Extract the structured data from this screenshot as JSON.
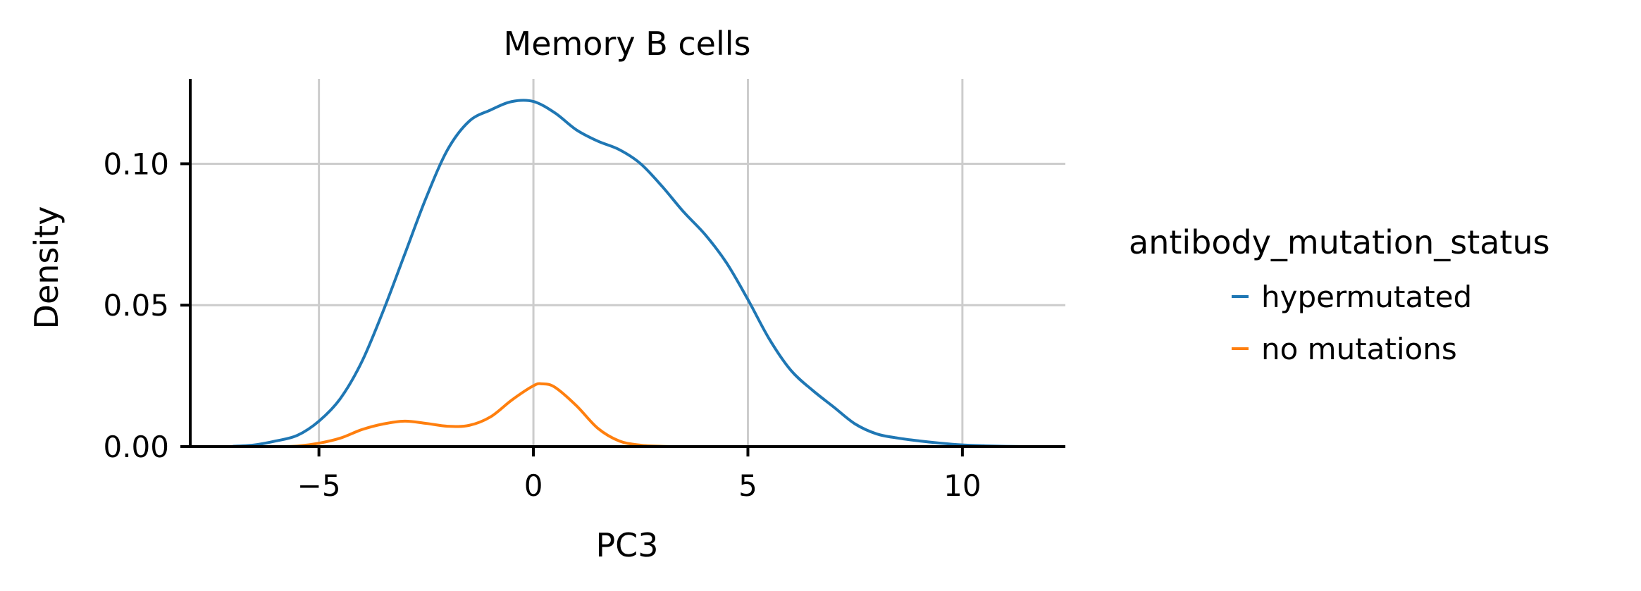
{
  "chart_data": {
    "type": "line",
    "title": "Memory B cells",
    "xlabel": "PC3",
    "ylabel": "Density",
    "xlim": [
      -8.0,
      12.4
    ],
    "ylim": [
      0,
      0.13
    ],
    "xticks": [
      -5,
      0,
      5,
      10
    ],
    "xtick_labels": [
      "−5",
      "0",
      "5",
      "10"
    ],
    "yticks": [
      0.0,
      0.05,
      0.1
    ],
    "ytick_labels": [
      "0.00",
      "0.05",
      "0.10"
    ],
    "grid": true,
    "legend": {
      "title": "antibody_mutation_status",
      "placement": "right"
    },
    "series": [
      {
        "name": "hypermutated",
        "color": "#1f77b4",
        "x": [
          -7,
          -6.5,
          -6,
          -5.5,
          -5,
          -4.5,
          -4,
          -3.5,
          -3,
          -2.5,
          -2,
          -1.5,
          -1,
          -0.5,
          0,
          0.5,
          1,
          1.5,
          2,
          2.5,
          3,
          3.5,
          4,
          4.5,
          5,
          5.5,
          6,
          6.5,
          7,
          7.5,
          8,
          8.5,
          9,
          9.5,
          10,
          10.5,
          11,
          11.5
        ],
        "y": [
          0.0001,
          0.0006,
          0.002,
          0.004,
          0.009,
          0.017,
          0.03,
          0.048,
          0.068,
          0.088,
          0.105,
          0.115,
          0.119,
          0.122,
          0.122,
          0.118,
          0.112,
          0.108,
          0.105,
          0.1,
          0.092,
          0.083,
          0.075,
          0.065,
          0.052,
          0.038,
          0.027,
          0.02,
          0.014,
          0.008,
          0.0045,
          0.003,
          0.002,
          0.0012,
          0.0006,
          0.0003,
          0.0001,
          0.0
        ]
      },
      {
        "name": "no mutations",
        "color": "#ff7f0e",
        "x": [
          -6,
          -5.5,
          -5,
          -4.5,
          -4,
          -3.5,
          -3,
          -2.5,
          -2,
          -1.5,
          -1,
          -0.5,
          0,
          0.2,
          0.5,
          1,
          1.5,
          2,
          2.5,
          3,
          3.5
        ],
        "y": [
          0.0,
          0.0002,
          0.0012,
          0.003,
          0.006,
          0.008,
          0.009,
          0.0082,
          0.0072,
          0.0075,
          0.0105,
          0.0165,
          0.0215,
          0.0222,
          0.021,
          0.0145,
          0.0065,
          0.002,
          0.0005,
          0.0001,
          0.0
        ]
      }
    ]
  }
}
